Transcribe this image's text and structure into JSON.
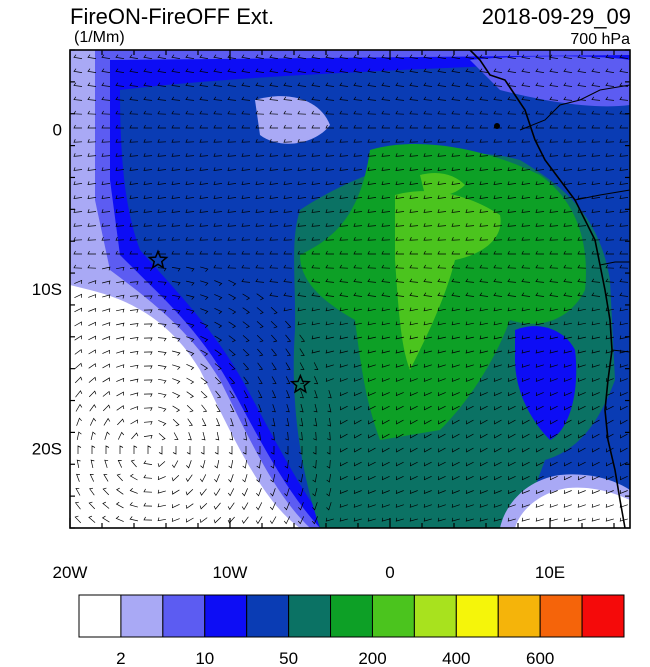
{
  "header": {
    "title_left": "FireON-FireOFF Ext.",
    "title_right": "2018-09-29_09",
    "units": "(1/Mm)",
    "level": "700 hPa"
  },
  "axes": {
    "x_ticks": [
      {
        "lon": -20,
        "label": "20W"
      },
      {
        "lon": -10,
        "label": "10W"
      },
      {
        "lon": 0,
        "label": "0"
      },
      {
        "lon": 10,
        "label": "10E"
      }
    ],
    "y_ticks": [
      {
        "lat": 0,
        "label": "0"
      },
      {
        "lat": -10,
        "label": "10S"
      },
      {
        "lat": -20,
        "label": "20S"
      }
    ],
    "lon_range": [
      -20,
      15
    ],
    "lat_range": [
      -25,
      5
    ]
  },
  "colorbar": {
    "colors": [
      "#ffffff",
      "#a9a9f5",
      "#5c5cf2",
      "#0d0df5",
      "#0a3cb4",
      "#0b7264",
      "#0da026",
      "#4bc41e",
      "#a8e21e",
      "#f5f50a",
      "#f5b40a",
      "#f5640a",
      "#f50a0a"
    ],
    "labels": [
      {
        "after_box": 1,
        "text": "2"
      },
      {
        "after_box": 3,
        "text": "10"
      },
      {
        "after_box": 5,
        "text": "50"
      },
      {
        "after_box": 7,
        "text": "200"
      },
      {
        "after_box": 9,
        "text": "400"
      },
      {
        "after_box": 11,
        "text": "600"
      }
    ]
  },
  "markers": [
    {
      "name": "star-marker-west",
      "lon": -14.5,
      "lat": -8.2
    },
    {
      "name": "star-marker-south",
      "lon": -5.6,
      "lat": -16.0
    }
  ]
}
